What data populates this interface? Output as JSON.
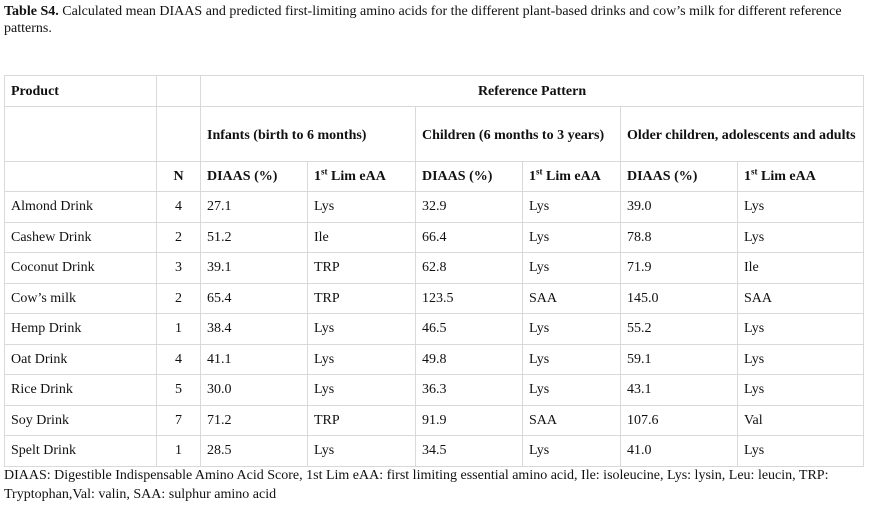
{
  "caption": {
    "label": "Table S4.",
    "text": "Calculated mean DIAAS and predicted first-limiting amino acids for the different plant-based drinks and cow’s milk for different reference patterns."
  },
  "headers": {
    "product": "Product",
    "reference_pattern": "Reference Pattern",
    "groups": [
      "Infants (birth to  6 months)",
      "Children (6 months to 3 years)",
      "Older children, adolescents and adults"
    ],
    "n": "N",
    "diaas": "DIAAS (%)",
    "lim_prefix": "1",
    "lim_sup": "st",
    "lim_suffix": " Lim eAA"
  },
  "rows": [
    {
      "product": "Almond Drink",
      "n": "4",
      "inf_diaas": "27.1",
      "inf_lim": "Lys",
      "chi_diaas": "32.9",
      "chi_lim": "Lys",
      "old_diaas": "39.0",
      "old_lim": "Lys"
    },
    {
      "product": "Cashew Drink",
      "n": "2",
      "inf_diaas": "51.2",
      "inf_lim": "Ile",
      "chi_diaas": "66.4",
      "chi_lim": "Lys",
      "old_diaas": "78.8",
      "old_lim": "Lys"
    },
    {
      "product": "Coconut Drink",
      "n": "3",
      "inf_diaas": "39.1",
      "inf_lim": "TRP",
      "chi_diaas": "62.8",
      "chi_lim": "Lys",
      "old_diaas": "71.9",
      "old_lim": "Ile"
    },
    {
      "product": "Cow’s milk",
      "n": "2",
      "inf_diaas": "65.4",
      "inf_lim": "TRP",
      "chi_diaas": "123.5",
      "chi_lim": "SAA",
      "old_diaas": "145.0",
      "old_lim": "SAA"
    },
    {
      "product": "Hemp Drink",
      "n": "1",
      "inf_diaas": "38.4",
      "inf_lim": "Lys",
      "chi_diaas": "46.5",
      "chi_lim": "Lys",
      "old_diaas": "55.2",
      "old_lim": "Lys"
    },
    {
      "product": "Oat Drink",
      "n": "4",
      "inf_diaas": "41.1",
      "inf_lim": "Lys",
      "chi_diaas": "49.8",
      "chi_lim": "Lys",
      "old_diaas": "59.1",
      "old_lim": "Lys"
    },
    {
      "product": "Rice Drink",
      "n": "5",
      "inf_diaas": "30.0",
      "inf_lim": "Lys",
      "chi_diaas": "36.3",
      "chi_lim": "Lys",
      "old_diaas": "43.1",
      "old_lim": "Lys"
    },
    {
      "product": "Soy Drink",
      "n": "7",
      "inf_diaas": "71.2",
      "inf_lim": "TRP",
      "chi_diaas": "91.9",
      "chi_lim": "SAA",
      "old_diaas": "107.6",
      "old_lim": "Val"
    },
    {
      "product": "Spelt Drink",
      "n": "1",
      "inf_diaas": "28.5",
      "inf_lim": "Lys",
      "chi_diaas": "34.5",
      "chi_lim": "Lys",
      "old_diaas": "41.0",
      "old_lim": "Lys"
    }
  ],
  "footer": "DIAAS: Digestible Indispensable Amino Acid Score, 1st Lim eAA: first limiting essential amino acid, Ile: isoleucine, Lys: lysin, Leu: leucin, TRP: Tryptophan,Val: valin, SAA: sulphur amino acid"
}
